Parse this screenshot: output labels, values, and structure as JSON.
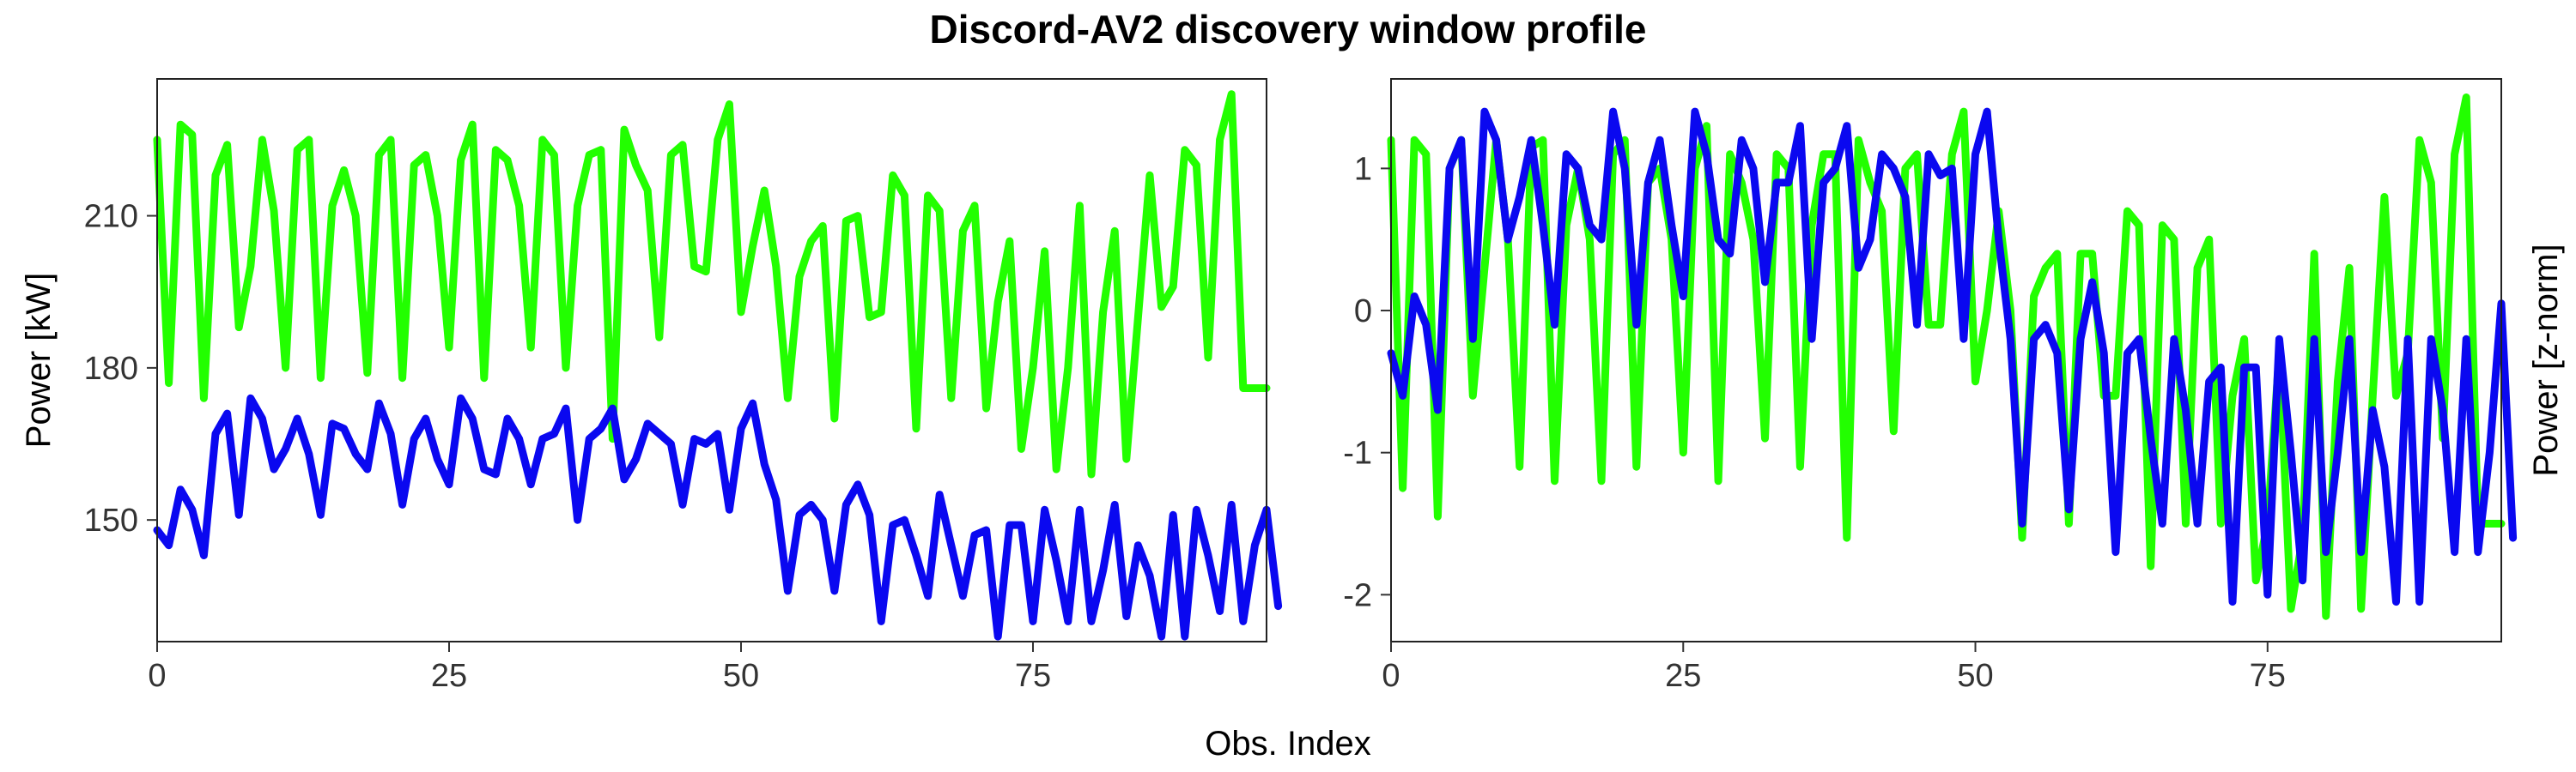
{
  "chart_data": {
    "type": "line",
    "title": "Discord-AV2 discovery window profile",
    "xlabel": "Obs. Index",
    "colors": {
      "a": "#22ff00",
      "b": "#0a08f0"
    },
    "panels": [
      {
        "ylabel": "Power [kW]",
        "ylabel_side": "left",
        "xlim": [
          0,
          95
        ],
        "ylim": [
          126,
          237
        ],
        "xticks": [
          0,
          25,
          50,
          75
        ],
        "yticks": [
          150,
          180,
          210
        ],
        "series": [
          {
            "color": "a",
            "values": [
              225,
              177,
              228,
              226,
              174,
              218,
              224,
              188,
              200,
              225,
              211,
              180,
              223,
              225,
              178,
              212,
              219,
              210,
              179,
              222,
              225,
              178,
              220,
              222,
              210,
              184,
              221,
              228,
              178,
              223,
              221,
              212,
              184,
              225,
              222,
              180,
              212,
              222,
              223,
              166,
              227,
              220,
              215,
              186,
              222,
              224,
              200,
              199,
              225,
              232,
              191,
              204,
              215,
              200,
              174,
              198,
              205,
              208,
              170,
              209,
              210,
              190,
              191,
              218,
              214,
              168,
              214,
              211,
              174,
              207,
              212,
              172,
              193,
              205,
              164,
              180,
              203,
              160,
              180,
              212,
              159,
              191,
              207,
              162,
              190,
              218,
              192,
              196,
              223,
              220,
              182,
              225,
              234,
              176,
              176,
              176
            ]
          },
          {
            "color": "b",
            "values": [
              148,
              145,
              156,
              152,
              143,
              167,
              171,
              151,
              174,
              170,
              160,
              164,
              170,
              163,
              151,
              169,
              168,
              163,
              160,
              173,
              167,
              153,
              166,
              170,
              162,
              157,
              174,
              170,
              160,
              159,
              170,
              166,
              157,
              166,
              167,
              172,
              150,
              166,
              168,
              172,
              158,
              162,
              169,
              167,
              165,
              153,
              166,
              165,
              167,
              152,
              168,
              173,
              161,
              154,
              136,
              151,
              153,
              150,
              136,
              153,
              157,
              151,
              130,
              149,
              150,
              143,
              135,
              155,
              145,
              135,
              147,
              148,
              127,
              149,
              149,
              130,
              152,
              142,
              130,
              152,
              130,
              140,
              153,
              131,
              145,
              139,
              127,
              151,
              127,
              152,
              143,
              132,
              153,
              130,
              145,
              152,
              133
            ]
          }
        ]
      },
      {
        "ylabel": "Power [z-norm]",
        "ylabel_side": "right",
        "xlim": [
          0,
          95
        ],
        "ylim": [
          -2.33,
          1.63
        ],
        "xticks": [
          0,
          25,
          50,
          75
        ],
        "yticks": [
          -2,
          -1,
          0,
          1
        ],
        "series": [
          {
            "color": "a",
            "values": [
              1.2,
              -1.25,
              1.2,
              1.1,
              -1.45,
              1.0,
              1.2,
              -0.6,
              0.3,
              1.2,
              0.5,
              -1.1,
              1.15,
              1.2,
              -1.2,
              0.6,
              1.0,
              0.5,
              -1.2,
              1.1,
              1.2,
              -1.1,
              0.9,
              1.0,
              0.5,
              -1.0,
              1.0,
              1.3,
              -1.2,
              1.1,
              0.9,
              0.5,
              -0.9,
              1.1,
              1.0,
              -1.1,
              0.6,
              1.1,
              1.1,
              -1.6,
              1.2,
              0.9,
              0.7,
              -0.85,
              1.0,
              1.1,
              -0.1,
              -0.1,
              1.1,
              1.4,
              -0.5,
              0.0,
              0.7,
              0.0,
              -1.6,
              0.1,
              0.3,
              0.4,
              -1.5,
              0.4,
              0.4,
              -0.6,
              -0.6,
              0.7,
              0.6,
              -1.8,
              0.6,
              0.5,
              -1.5,
              0.3,
              0.5,
              -1.5,
              -0.6,
              -0.2,
              -1.9,
              -1.5,
              -0.3,
              -2.1,
              -1.6,
              0.4,
              -2.15,
              -0.5,
              0.3,
              -2.1,
              -0.6,
              0.8,
              -0.6,
              -0.3,
              1.2,
              0.9,
              -0.9,
              1.1,
              1.5,
              -1.5,
              -1.5,
              -1.5
            ]
          },
          {
            "color": "b",
            "values": [
              -0.3,
              -0.6,
              0.1,
              -0.1,
              -0.7,
              1.0,
              1.2,
              -0.2,
              1.4,
              1.2,
              0.5,
              0.8,
              1.2,
              0.6,
              -0.1,
              1.1,
              1.0,
              0.6,
              0.5,
              1.4,
              1.0,
              -0.1,
              0.9,
              1.2,
              0.6,
              0.1,
              1.4,
              1.1,
              0.5,
              0.4,
              1.2,
              1.0,
              0.2,
              0.9,
              0.9,
              1.3,
              -0.2,
              0.9,
              1.0,
              1.3,
              0.3,
              0.5,
              1.1,
              1.0,
              0.8,
              -0.1,
              1.1,
              0.95,
              1.0,
              -0.2,
              1.1,
              1.4,
              0.5,
              -0.2,
              -1.5,
              -0.2,
              -0.1,
              -0.3,
              -1.4,
              -0.2,
              0.2,
              -0.3,
              -1.7,
              -0.3,
              -0.2,
              -0.9,
              -1.5,
              -0.2,
              -0.7,
              -1.5,
              -0.5,
              -0.4,
              -2.05,
              -0.4,
              -0.4,
              -2.0,
              -0.2,
              -1.0,
              -1.9,
              -0.2,
              -1.7,
              -1.0,
              -0.2,
              -1.7,
              -0.7,
              -1.1,
              -2.05,
              -0.2,
              -2.05,
              -0.2,
              -0.7,
              -1.7,
              -0.2,
              -1.7,
              -1.0,
              0.05,
              -1.6
            ]
          }
        ]
      }
    ]
  }
}
